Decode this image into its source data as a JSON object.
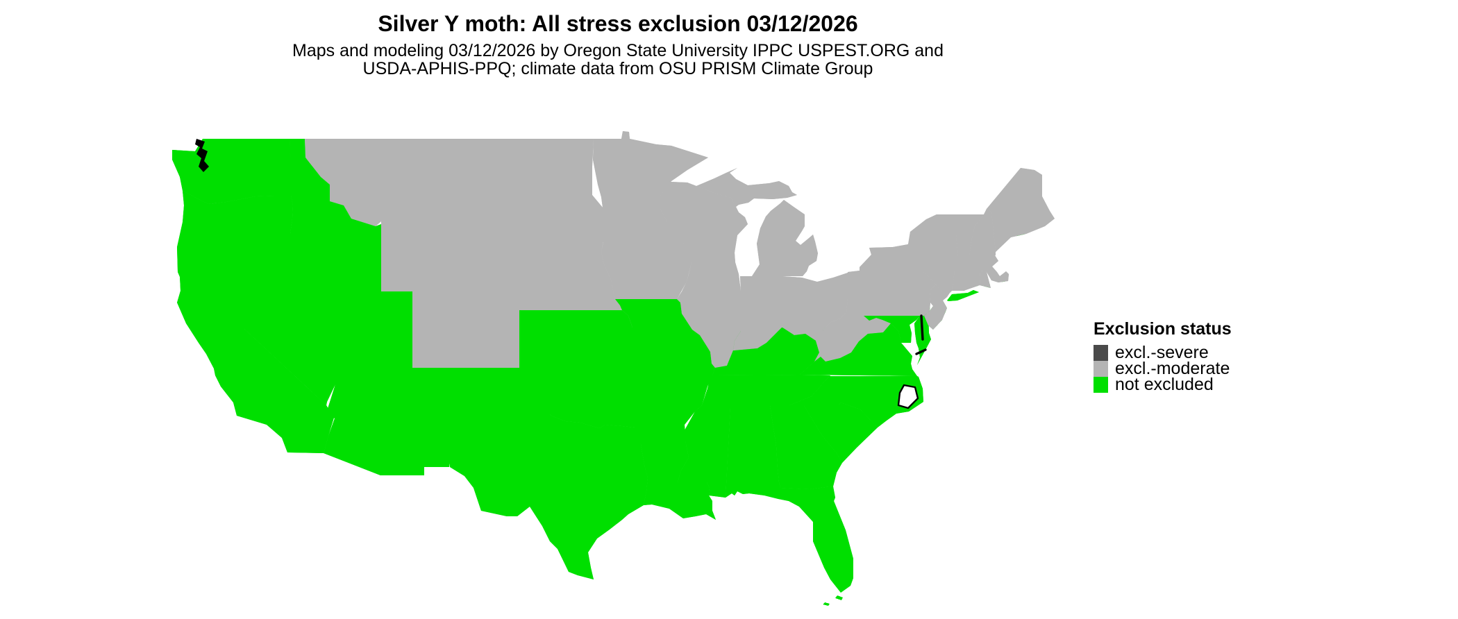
{
  "title": "Silver Y moth: All stress exclusion 03/12/2026",
  "subtitle_line1": "Maps and modeling 03/12/2026 by Oregon State University IPPC USPEST.ORG and",
  "subtitle_line2": "USDA-APHIS-PPQ; climate data from OSU PRISM Climate Group",
  "legend": {
    "title": "Exclusion status",
    "items": [
      {
        "label": "excl.-severe",
        "status": "excluded_severe",
        "color": "#4a4a4a"
      },
      {
        "label": "excl.-moderate",
        "status": "excluded_moderate",
        "color": "#b4b4b4"
      },
      {
        "label": "not excluded",
        "status": "not_excluded",
        "color": "#00df00"
      }
    ]
  },
  "map": {
    "background": "#ffffff",
    "border_color": "#000000",
    "palette": {
      "not_excluded": "#00df00",
      "excluded_moderate": "#b4b4b4",
      "excluded_severe": "#4a4a4a"
    },
    "status_by_state": {
      "WA": "not_excluded",
      "OR": "not_excluded",
      "CA": "not_excluded",
      "NV": "not_excluded",
      "ID": "not_excluded",
      "UT": "not_excluded",
      "AZ": "not_excluded",
      "NM": "not_excluded",
      "MT": "excluded_moderate",
      "WY": "excluded_moderate",
      "CO": "excluded_moderate",
      "ND": "excluded_moderate",
      "SD": "excluded_moderate",
      "NE": "excluded_moderate",
      "KS": "not_excluded",
      "OK": "not_excluded",
      "TX": "not_excluded",
      "MN": "excluded_moderate",
      "IA": "excluded_moderate",
      "MO": "not_excluded",
      "AR": "not_excluded",
      "LA": "not_excluded",
      "WI": "excluded_moderate",
      "IL": "excluded_moderate",
      "IN": "excluded_moderate",
      "OH": "excluded_moderate",
      "MI": "excluded_moderate",
      "MI_UP": "excluded_moderate",
      "KY": "not_excluded",
      "TN": "not_excluded",
      "MS": "not_excluded",
      "AL": "not_excluded",
      "GA": "not_excluded",
      "SC": "not_excluded",
      "NC": "not_excluded",
      "FL": "not_excluded",
      "VA": "not_excluded",
      "WV": "excluded_moderate",
      "MD": "not_excluded",
      "DELMARVA": "not_excluded",
      "NJ": "excluded_moderate",
      "PA": "excluded_moderate",
      "NY": "excluded_moderate",
      "LI": "not_excluded",
      "CT": "excluded_moderate",
      "RI": "excluded_moderate",
      "MA": "excluded_moderate",
      "VT": "excluded_moderate",
      "NH": "excluded_moderate",
      "ME": "excluded_moderate"
    }
  }
}
